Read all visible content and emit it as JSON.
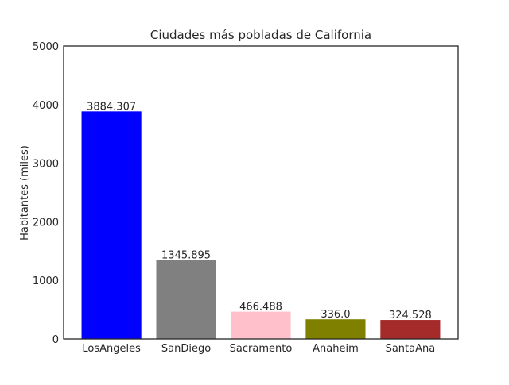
{
  "chart_data": {
    "type": "bar",
    "title": "Ciudades más pobladas de California",
    "xlabel": "",
    "ylabel": "Habitantes (miles)",
    "categories": [
      "LosAngeles",
      "SanDiego",
      "Sacramento",
      "Anaheim",
      "SantaAna"
    ],
    "values": [
      3884.307,
      1345.895,
      466.488,
      336.0,
      324.528
    ],
    "value_labels": [
      "3884.307",
      "1345.895",
      "466.488",
      "336.0",
      "324.528"
    ],
    "colors": [
      "#0000ff",
      "#808080",
      "#ffc0cb",
      "#808000",
      "#a52a2a"
    ],
    "ylim": [
      0,
      5000
    ],
    "yticks": [
      0,
      1000,
      2000,
      3000,
      4000,
      5000
    ],
    "grid": false,
    "legend": "none"
  }
}
